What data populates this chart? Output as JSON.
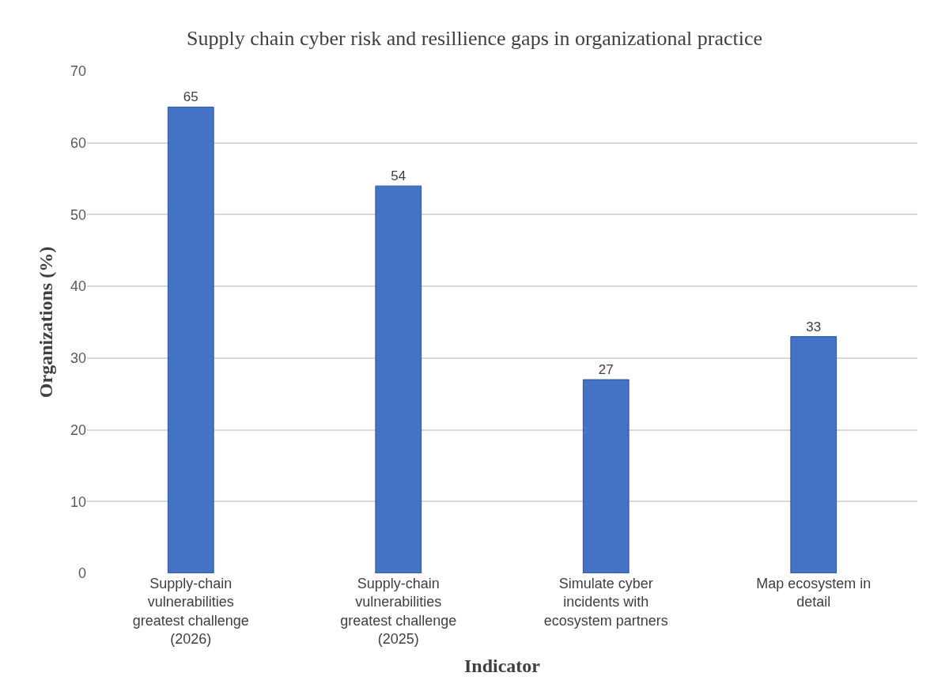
{
  "chart_data": {
    "type": "bar",
    "title": "Supply chain cyber risk and resillience gaps in organizational practice",
    "xlabel": "Indicator",
    "ylabel": "Organizations (%)",
    "categories": [
      "Supply-chain vulnerabilities greatest challenge (2026)",
      "Supply-chain vulnerabilities greatest challenge (2025)",
      "Simulate cyber incidents with ecosystem partners",
      "Map ecosystem in detail"
    ],
    "values": [
      65,
      54,
      27,
      33
    ],
    "color": "#4472c4",
    "ylim": [
      0,
      70
    ],
    "yticks": [
      0,
      10,
      20,
      30,
      40,
      50,
      60,
      70
    ],
    "grid": "y",
    "data_labels": true
  }
}
